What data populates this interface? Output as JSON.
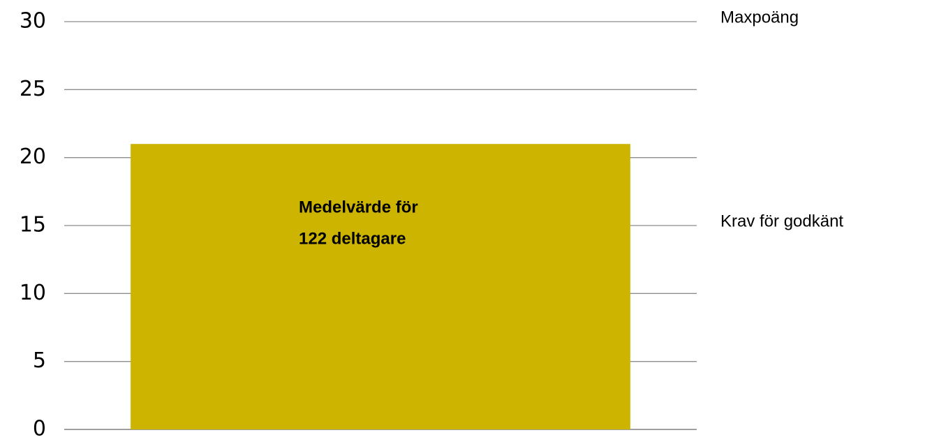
{
  "chart_data": {
    "type": "bar",
    "categories": [
      null
    ],
    "values": [
      21
    ],
    "color": "#ccb400",
    "bar_text": [
      "Medelvärde för",
      "122 deltagare"
    ],
    "annotations": [
      {
        "text": "Maxpoäng",
        "y": 30
      },
      {
        "text": "Krav för godkänt",
        "y": 15
      }
    ],
    "ylim": [
      0,
      30
    ],
    "yticks": [
      0,
      5,
      10,
      15,
      20,
      25,
      30
    ],
    "grid": true
  }
}
